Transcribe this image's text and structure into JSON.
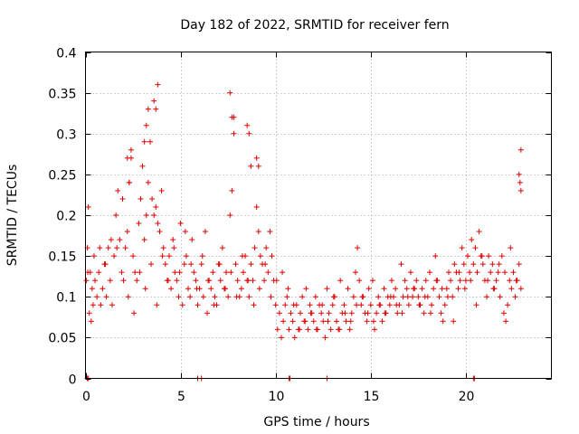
{
  "chart_data": {
    "type": "scatter",
    "title": "Day 182 of 2022, SRMTID for receiver fern",
    "xlabel": "GPS time / hours",
    "ylabel": "SRMTID / TECUs",
    "xlim": [
      0,
      24.5
    ],
    "ylim": [
      0,
      0.4
    ],
    "xticks": [
      0,
      5,
      10,
      15,
      20
    ],
    "xtick_labels": [
      "0",
      "5",
      "10",
      "15",
      "20"
    ],
    "yticks": [
      0,
      0.05,
      0.1,
      0.15,
      0.2,
      0.25,
      0.3,
      0.35,
      0.4
    ],
    "ytick_labels": [
      "0",
      "0.05",
      "0.1",
      "0.15",
      "0.2",
      "0.25",
      "0.3",
      "0.35",
      "0.4"
    ],
    "grid": true,
    "marker": "plus",
    "color": "#e00000",
    "series": [
      {
        "x": [
          0.05,
          0.1,
          0.15,
          0.2,
          0.25,
          0.3,
          0.35,
          0.4,
          0.5,
          0.6,
          0.7,
          0.8,
          0.9,
          1.0,
          1.1,
          1.2,
          1.3,
          1.4,
          1.5,
          1.6,
          1.7,
          1.8,
          1.9,
          2.0,
          2.1,
          2.2,
          2.3,
          2.4,
          2.5,
          2.6,
          2.7,
          2.8,
          2.9,
          3.0,
          3.1,
          3.2,
          3.3,
          3.4,
          3.5,
          3.6,
          3.7,
          3.8,
          3.9,
          4.0,
          4.1,
          4.2,
          4.3,
          4.4,
          4.5,
          4.6,
          4.7,
          4.8,
          4.9,
          5.0,
          5.1,
          5.2,
          5.3,
          5.4,
          5.5,
          5.6,
          5.7,
          5.8,
          5.9,
          6.0,
          6.1,
          6.2,
          6.3,
          6.4,
          6.5,
          6.6,
          6.7,
          6.8,
          6.9,
          7.0,
          7.1,
          7.2,
          7.3,
          7.4,
          7.5,
          7.6,
          7.7,
          7.8,
          7.9,
          8.0,
          8.1,
          8.2,
          8.3,
          8.4,
          8.5,
          8.6,
          8.7,
          8.8,
          8.9,
          9.0,
          9.1,
          9.2,
          9.3,
          9.4,
          9.5,
          9.6,
          9.7,
          9.8,
          9.9,
          10.0,
          10.1,
          10.2,
          10.3,
          10.4,
          10.5,
          10.6,
          10.7,
          10.8,
          10.9,
          11.0,
          11.1,
          11.2,
          11.3,
          11.4,
          11.5,
          11.6,
          11.7,
          11.8,
          11.9,
          12.0,
          12.1,
          12.2,
          12.3,
          12.4,
          12.5,
          12.6,
          12.7,
          12.8,
          12.9,
          13.0,
          13.1,
          13.2,
          13.3,
          13.4,
          13.5,
          13.6,
          13.7,
          13.8,
          13.9,
          14.0,
          14.1,
          14.2,
          14.3,
          14.4,
          14.5,
          14.6,
          14.7,
          14.8,
          14.9,
          15.0,
          15.1,
          15.2,
          15.3,
          15.4,
          15.5,
          15.6,
          15.7,
          15.8,
          15.9,
          16.0,
          16.1,
          16.2,
          16.3,
          16.4,
          16.5,
          16.6,
          16.7,
          16.8,
          16.9,
          17.0,
          17.1,
          17.2,
          17.3,
          17.4,
          17.5,
          17.6,
          17.7,
          17.8,
          17.9,
          18.0,
          18.1,
          18.2,
          18.3,
          18.4,
          18.5,
          18.6,
          18.7,
          18.8,
          18.9,
          19.0,
          19.1,
          19.2,
          19.3,
          19.4,
          19.5,
          19.6,
          19.7,
          19.8,
          19.9,
          20.0,
          20.1,
          20.2,
          20.3,
          20.4,
          20.5,
          20.6,
          20.7,
          20.8,
          20.9,
          21.0,
          21.1,
          21.2,
          21.3,
          21.4,
          21.5,
          21.6,
          21.7,
          21.8,
          21.9,
          22.0,
          22.1,
          22.2,
          22.3,
          22.4,
          22.5,
          22.6,
          22.7,
          22.8,
          22.9,
          0.12,
          0.45,
          0.75,
          1.05,
          1.35,
          1.65,
          1.95,
          2.25,
          2.55,
          2.85,
          3.15,
          3.45,
          3.75,
          4.05,
          4.35,
          4.65,
          4.95,
          5.25,
          5.55,
          5.85,
          6.15,
          6.45,
          6.75,
          7.05,
          7.35,
          7.65,
          7.95,
          8.25,
          8.55,
          8.85,
          9.15,
          9.45,
          9.75,
          10.05,
          10.35,
          10.65,
          10.95,
          11.25,
          11.55,
          11.85,
          12.15,
          12.45,
          12.75,
          13.05,
          13.35,
          13.65,
          13.95,
          14.25,
          14.55,
          14.85,
          15.15,
          15.45,
          15.75,
          16.05,
          16.35,
          16.65,
          16.95,
          17.25,
          17.55,
          17.85,
          18.15,
          18.45,
          18.75,
          19.05,
          19.35,
          19.65,
          19.95,
          20.25,
          20.55,
          20.85,
          21.15,
          21.45,
          21.75,
          22.05,
          22.35,
          22.65,
          22.9,
          2.2,
          2.3,
          2.4,
          3.1,
          3.2,
          3.3,
          3.6,
          3.7,
          3.8,
          7.6,
          7.7,
          7.8,
          8.5,
          8.6,
          8.7,
          9.0,
          9.1,
          22.8,
          22.85,
          22.9,
          0.1,
          0.15,
          5.9,
          6.1,
          10.7,
          10.75,
          12.7,
          20.4,
          20.45
        ],
        "y": [
          0.12,
          0.16,
          0.21,
          0.08,
          0.13,
          0.07,
          0.11,
          0.09,
          0.12,
          0.1,
          0.13,
          0.09,
          0.11,
          0.14,
          0.1,
          0.16,
          0.12,
          0.09,
          0.15,
          0.2,
          0.23,
          0.17,
          0.13,
          0.12,
          0.16,
          0.18,
          0.24,
          0.28,
          0.15,
          0.13,
          0.12,
          0.19,
          0.22,
          0.26,
          0.17,
          0.2,
          0.24,
          0.29,
          0.22,
          0.2,
          0.21,
          0.19,
          0.18,
          0.23,
          0.16,
          0.14,
          0.12,
          0.15,
          0.11,
          0.17,
          0.13,
          0.12,
          0.1,
          0.19,
          0.09,
          0.14,
          0.15,
          0.11,
          0.1,
          0.17,
          0.13,
          0.12,
          0.09,
          0.11,
          0.14,
          0.1,
          0.18,
          0.08,
          0.12,
          0.11,
          0.13,
          0.1,
          0.09,
          0.14,
          0.12,
          0.16,
          0.11,
          0.13,
          0.1,
          0.2,
          0.23,
          0.3,
          0.14,
          0.12,
          0.1,
          0.11,
          0.13,
          0.15,
          0.12,
          0.1,
          0.14,
          0.12,
          0.16,
          0.21,
          0.18,
          0.15,
          0.14,
          0.12,
          0.16,
          0.13,
          0.18,
          0.15,
          0.12,
          0.09,
          0.06,
          0.08,
          0.05,
          0.07,
          0.09,
          0.1,
          0.06,
          0.08,
          0.07,
          0.05,
          0.09,
          0.06,
          0.08,
          0.1,
          0.07,
          0.11,
          0.06,
          0.09,
          0.08,
          0.07,
          0.1,
          0.06,
          0.09,
          0.08,
          0.07,
          0.05,
          0.11,
          0.08,
          0.06,
          0.09,
          0.1,
          0.07,
          0.06,
          0.12,
          0.08,
          0.09,
          0.07,
          0.11,
          0.06,
          0.08,
          0.1,
          0.13,
          0.16,
          0.12,
          0.09,
          0.1,
          0.08,
          0.07,
          0.11,
          0.09,
          0.12,
          0.06,
          0.08,
          0.1,
          0.09,
          0.07,
          0.11,
          0.08,
          0.1,
          0.09,
          0.12,
          0.1,
          0.11,
          0.08,
          0.09,
          0.14,
          0.1,
          0.12,
          0.11,
          0.09,
          0.13,
          0.1,
          0.11,
          0.12,
          0.1,
          0.09,
          0.11,
          0.08,
          0.12,
          0.1,
          0.13,
          0.09,
          0.11,
          0.15,
          0.12,
          0.1,
          0.08,
          0.07,
          0.09,
          0.11,
          0.13,
          0.12,
          0.1,
          0.14,
          0.13,
          0.11,
          0.12,
          0.16,
          0.14,
          0.12,
          0.15,
          0.13,
          0.17,
          0.14,
          0.16,
          0.13,
          0.18,
          0.15,
          0.14,
          0.12,
          0.1,
          0.15,
          0.13,
          0.14,
          0.11,
          0.12,
          0.13,
          0.1,
          0.15,
          0.08,
          0.07,
          0.09,
          0.12,
          0.11,
          0.13,
          0.1,
          0.12,
          0.14,
          0.11,
          0.13,
          0.15,
          0.16,
          0.14,
          0.17,
          0.16,
          0.22,
          0.1,
          0.08,
          0.13,
          0.11,
          0.14,
          0.09,
          0.15,
          0.12,
          0.16,
          0.13,
          0.18,
          0.14,
          0.11,
          0.15,
          0.12,
          0.09,
          0.14,
          0.11,
          0.13,
          0.1,
          0.15,
          0.12,
          0.09,
          0.11,
          0.14,
          0.1,
          0.12,
          0.13,
          0.11,
          0.09,
          0.06,
          0.07,
          0.08,
          0.06,
          0.09,
          0.07,
          0.1,
          0.06,
          0.08,
          0.07,
          0.09,
          0.1,
          0.08,
          0.07,
          0.09,
          0.08,
          0.1,
          0.09,
          0.08,
          0.1,
          0.11,
          0.09,
          0.1,
          0.08,
          0.12,
          0.11,
          0.1,
          0.07,
          0.13,
          0.11,
          0.12,
          0.09,
          0.15,
          0.12,
          0.11,
          0.14,
          0.13,
          0.16,
          0.12,
          0.28,
          0.27,
          0.24,
          0.27,
          0.29,
          0.31,
          0.33,
          0.34,
          0.33,
          0.36,
          0.35,
          0.32,
          0.32,
          0.31,
          0.3,
          0.26,
          0.27,
          0.26,
          0.25,
          0.24,
          0.23,
          0.0,
          0.0,
          0.0,
          0.0,
          0.0,
          0.0,
          0.0,
          0.0,
          0.0
        ]
      }
    ]
  }
}
